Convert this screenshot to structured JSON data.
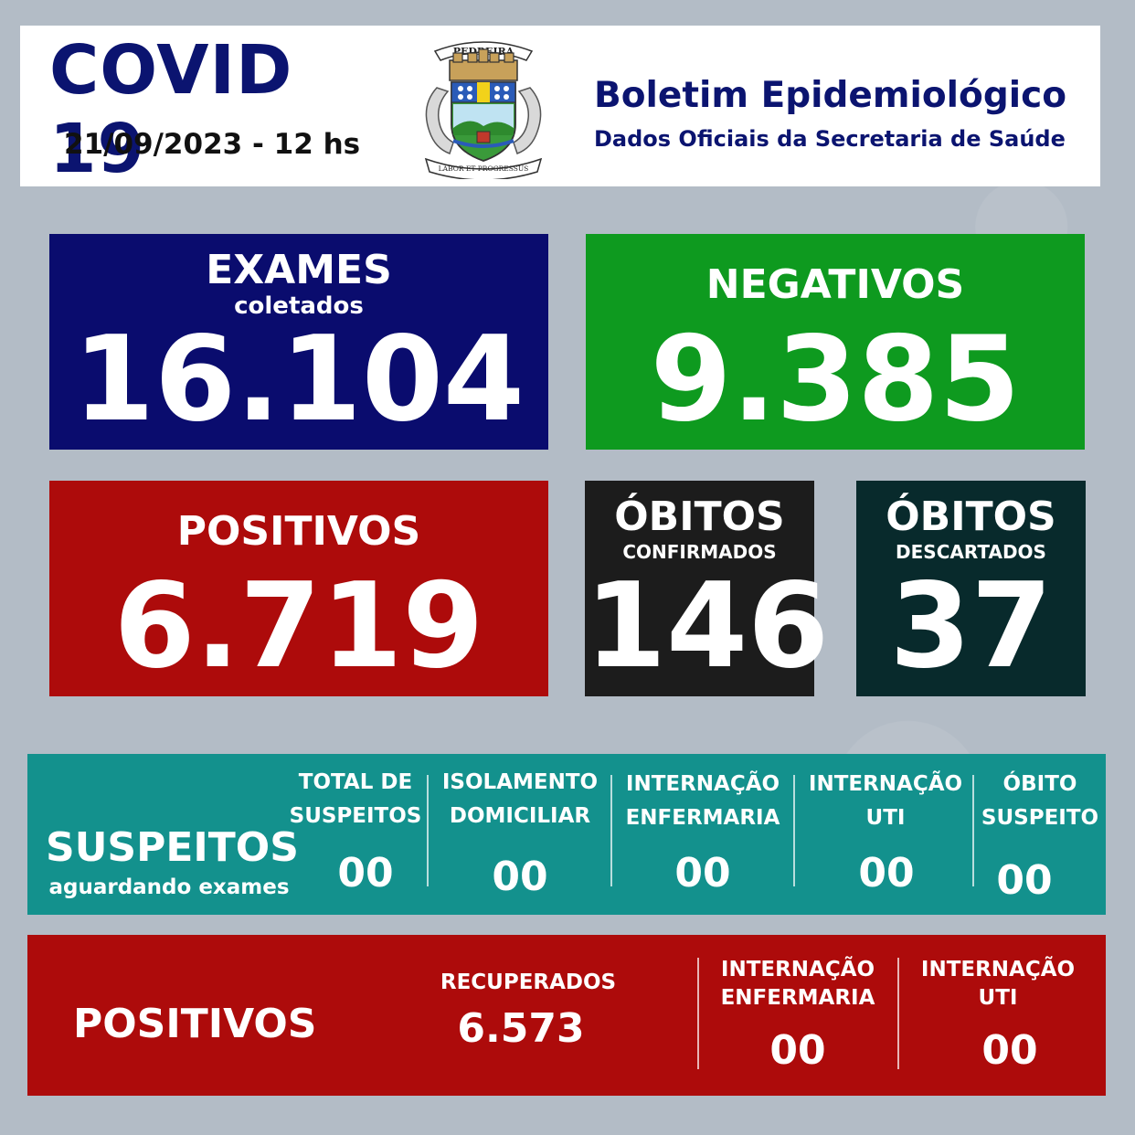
{
  "header": {
    "title": "COVID 19",
    "date": "21/09/2023 - 12 hs",
    "bulletin_title": "Boletim Epidemiológico",
    "bulletin_subtitle": "Dados Oficiais da Secretaria de Saúde",
    "crest_text_top": "PEDREIRA",
    "crest_text_bottom": "LABOR ET PROGRESSUS"
  },
  "cards": {
    "exames": {
      "label": "EXAMES",
      "sublabel": "coletados",
      "value": "16.104",
      "color": "#0a0c6e"
    },
    "negativos": {
      "label": "NEGATIVOS",
      "value": "9.385",
      "color": "#0e9a1f"
    },
    "positivos": {
      "label": "POSITIVOS",
      "value": "6.719",
      "color": "#ad0b0b"
    },
    "obitos_confirmados": {
      "label": "ÓBITOS",
      "sublabel": "CONFIRMADOS",
      "value": "146",
      "color": "#1c1c1c"
    },
    "obitos_descartados": {
      "label": "ÓBITOS",
      "sublabel": "DESCARTADOS",
      "value": "37",
      "color": "#082a2c"
    }
  },
  "suspeitos": {
    "title": "SUSPEITOS",
    "subtitle": "aguardando exames",
    "color": "#13918d",
    "columns": [
      {
        "line1": "TOTAL DE",
        "line2": "SUSPEITOS",
        "value": "00"
      },
      {
        "line1": "ISOLAMENTO",
        "line2": "DOMICILIAR",
        "value": "00"
      },
      {
        "line1": "INTERNAÇÃO",
        "line2": "ENFERMARIA",
        "value": "00"
      },
      {
        "line1": "INTERNAÇÃO",
        "line2": "UTI",
        "value": "00"
      },
      {
        "line1": "ÓBITO",
        "line2": "SUSPEITO",
        "value": "00"
      }
    ]
  },
  "positivos_band": {
    "title": "POSITIVOS",
    "color": "#ad0b0b",
    "recuperados": {
      "label": "RECUPERADOS",
      "value": "6.573"
    },
    "enfermaria": {
      "line1": "INTERNAÇÃO",
      "line2": "ENFERMARIA",
      "value": "00"
    },
    "uti": {
      "line1": "INTERNAÇÃO",
      "line2": "UTI",
      "value": "00"
    }
  }
}
